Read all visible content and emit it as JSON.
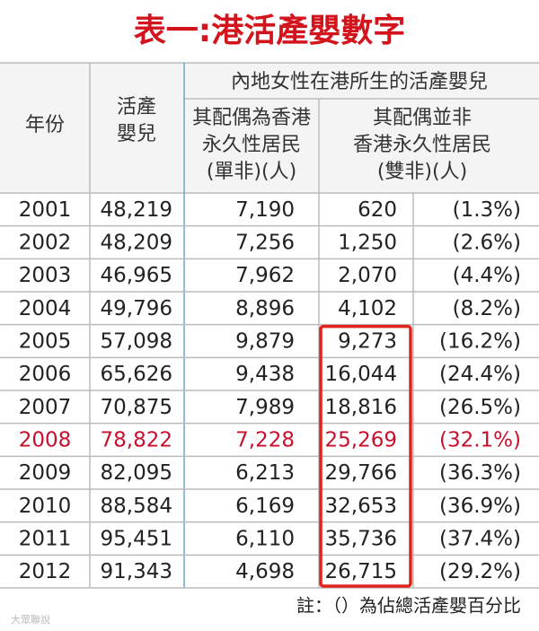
{
  "title": "表一:港活產嬰數字",
  "table": {
    "header": {
      "year": "年份",
      "births": [
        "活產",
        "嬰兒"
      ],
      "group": "內地女性在港所生的活產嬰兒",
      "single": [
        "其配偶為香港",
        "永久性居民",
        "(單非)(人)"
      ],
      "double": [
        "其配偶並非",
        "香港永久性居民",
        "(雙非)(人)"
      ]
    },
    "rows": [
      [
        "2001",
        "48,219",
        "7,190",
        "620",
        "(1.3%)"
      ],
      [
        "2002",
        "48,209",
        "7,256",
        "1,250",
        "(2.6%)"
      ],
      [
        "2003",
        "46,965",
        "7,962",
        "2,070",
        "(4.4%)"
      ],
      [
        "2004",
        "49,796",
        "8,896",
        "4,102",
        "(8.2%)"
      ],
      [
        "2005",
        "57,098",
        "9,879",
        "9,273",
        "(16.2%)"
      ],
      [
        "2006",
        "65,626",
        "9,438",
        "16,044",
        "(24.4%)"
      ],
      [
        "2007",
        "70,875",
        "7,989",
        "18,816",
        "(26.5%)"
      ],
      [
        "2008",
        "78,822",
        "7,228",
        "25,269",
        "(32.1%)"
      ],
      [
        "2009",
        "82,095",
        "6,213",
        "29,766",
        "(36.3%)"
      ],
      [
        "2010",
        "88,584",
        "6,169",
        "32,653",
        "(36.9%)"
      ],
      [
        "2011",
        "95,451",
        "6,110",
        "35,736",
        "(37.4%)"
      ],
      [
        "2012",
        "91,343",
        "4,698",
        "26,715",
        "(29.2%)"
      ]
    ]
  },
  "footnote": "註：（）為佔總活產嬰百分比",
  "watermark": "大眾聯說"
}
